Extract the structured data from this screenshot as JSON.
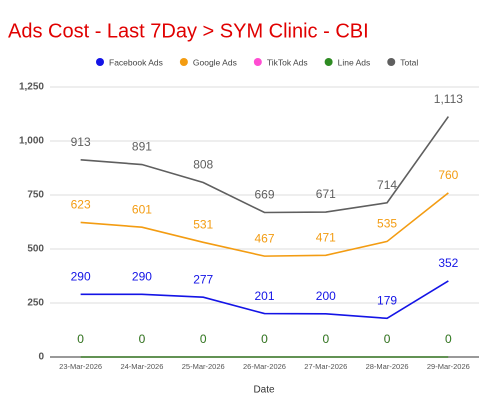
{
  "chart_data": {
    "type": "line",
    "title": "Ads Cost - Last 7Day > SYM Clinic - CBI",
    "x_label": "Date",
    "categories": [
      "23-Mar-2026",
      "24-Mar-2026",
      "25-Mar-2026",
      "26-Mar-2026",
      "27-Mar-2026",
      "28-Mar-2026",
      "29-Mar-2026"
    ],
    "series": [
      {
        "name": "Facebook Ads",
        "color": "#1414e6",
        "values": [
          290,
          290,
          277,
          201,
          200,
          179,
          352
        ]
      },
      {
        "name": "Google Ads",
        "color": "#f39c12",
        "values": [
          623,
          601,
          531,
          467,
          471,
          535,
          760
        ]
      },
      {
        "name": "TikTok Ads",
        "color": "#ff4dd2",
        "values": [
          0,
          0,
          0,
          0,
          0,
          0,
          0
        ]
      },
      {
        "name": "Line Ads",
        "color": "#2e8b22",
        "values": [
          0,
          0,
          0,
          0,
          0,
          0,
          0
        ]
      },
      {
        "name": "Total",
        "color": "#5f5f5f",
        "values": [
          913,
          891,
          808,
          669,
          671,
          714,
          1113
        ],
        "value_labels": [
          "913",
          "891",
          "808",
          "669",
          "671",
          "714",
          "1,113"
        ]
      }
    ],
    "ylim": [
      0,
      1250
    ],
    "yticks": [
      0,
      250,
      500,
      750,
      {
        "value": 1000,
        "label": "1,000"
      },
      {
        "value": 1250,
        "label": "1,250"
      }
    ],
    "grid": true
  }
}
